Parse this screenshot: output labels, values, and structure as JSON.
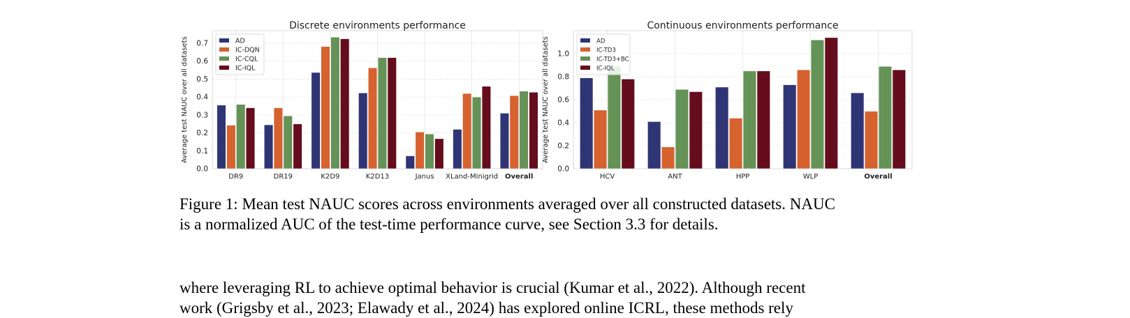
{
  "chart_data": [
    {
      "type": "bar",
      "title": "Discrete environments performance",
      "xlabel": "",
      "ylabel": "Average test NAUC over all datasets",
      "categories": [
        "DR9",
        "DR19",
        "K2D9",
        "K2D13",
        "Janus",
        "XLand-Minigrid",
        "Overall"
      ],
      "bold_categories": [
        "Overall"
      ],
      "ylim": [
        0,
        0.77
      ],
      "yticks": [
        "0.0",
        "0.1",
        "0.2",
        "0.3",
        "0.4",
        "0.5",
        "0.6",
        "0.7"
      ],
      "grid": true,
      "legend": "top-left",
      "series": [
        {
          "name": "AD",
          "color": "#2f3574",
          "values": [
            0.355,
            0.245,
            0.537,
            0.423,
            0.072,
            0.22,
            0.31
          ]
        },
        {
          "name": "IC-DQN",
          "color": "#d6622f",
          "values": [
            0.243,
            0.34,
            0.682,
            0.563,
            0.205,
            0.42,
            0.408
          ]
        },
        {
          "name": "IC-CQL",
          "color": "#649257",
          "values": [
            0.359,
            0.295,
            0.734,
            0.62,
            0.194,
            0.4,
            0.433
          ]
        },
        {
          "name": "IC-IQL",
          "color": "#650d1d",
          "values": [
            0.34,
            0.25,
            0.725,
            0.62,
            0.168,
            0.46,
            0.427
          ]
        }
      ]
    },
    {
      "type": "bar",
      "title": "Continuous environments performance",
      "xlabel": "",
      "ylabel": "Average test NAUC over all datasets",
      "categories": [
        "HCV",
        "ANT",
        "HPP",
        "WLP",
        "Overall"
      ],
      "bold_categories": [
        "Overall"
      ],
      "ylim": [
        0,
        1.2
      ],
      "yticks": [
        "0.0",
        "0.2",
        "0.4",
        "0.6",
        "0.8",
        "1.0"
      ],
      "grid": true,
      "legend": "top-left",
      "series": [
        {
          "name": "AD",
          "color": "#2f3574",
          "values": [
            0.79,
            0.41,
            0.71,
            0.73,
            0.66
          ]
        },
        {
          "name": "IC-TD3",
          "color": "#d6622f",
          "values": [
            0.51,
            0.19,
            0.44,
            0.86,
            0.5
          ]
        },
        {
          "name": "IC-TD3+BC",
          "color": "#649257",
          "values": [
            0.89,
            0.69,
            0.85,
            1.12,
            0.89
          ]
        },
        {
          "name": "IC-IQL",
          "color": "#650d1d",
          "values": [
            0.78,
            0.67,
            0.85,
            1.14,
            0.86
          ]
        }
      ]
    }
  ],
  "caption": {
    "line1": "Figure 1: Mean test NAUC scores across environments averaged over all constructed datasets. NAUC",
    "line2": "is a normalized AUC of the test-time performance curve, see Section 3.3 for details."
  },
  "body": {
    "line1": "where leveraging RL to achieve optimal behavior is crucial (Kumar et al., 2022). Although recent",
    "line2": "work (Grigsby et al., 2023; Elawady et al., 2024) has explored online ICRL, these methods rely"
  }
}
